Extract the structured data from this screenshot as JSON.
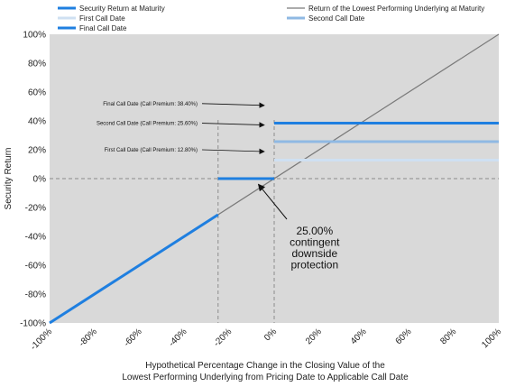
{
  "chart_data": {
    "type": "line",
    "xlabel_lines": [
      "Hypothetical Percentage Change in the Closing Value of the",
      "Lowest Performing Underlying from Pricing Date to Applicable Call Date"
    ],
    "ylabel": "Security Return",
    "xlim": [
      -100,
      100
    ],
    "ylim": [
      -100,
      100
    ],
    "x_ticks": [
      -100,
      -80,
      -60,
      -40,
      -20,
      0,
      20,
      40,
      60,
      80,
      100
    ],
    "y_ticks": [
      -100,
      -80,
      -60,
      -40,
      -20,
      0,
      20,
      40,
      60,
      80,
      100
    ],
    "x_tick_labels": [
      "-100%",
      "-80%",
      "-60%",
      "-40%",
      "-20%",
      "0%",
      "20%",
      "40%",
      "60%",
      "80%",
      "100%"
    ],
    "y_tick_labels": [
      "-100%",
      "-80%",
      "-60%",
      "-40%",
      "-20%",
      "0%",
      "20%",
      "40%",
      "60%",
      "80%",
      "100%"
    ],
    "legend": [
      {
        "label": "Security Return at Maturity",
        "color": "#1f7fe0",
        "thick": true
      },
      {
        "label": "Return of the Lowest Performing Underlying at Maturity",
        "color": "#7a7a7a",
        "thick": false
      },
      {
        "label": "First Call Date",
        "color": "#cfe0f2",
        "thick": true
      },
      {
        "label": "Second Call Date",
        "color": "#8fb9e3",
        "thick": true
      },
      {
        "label": "Final Call Date",
        "color": "#1f7fe0",
        "thick": true
      }
    ],
    "series": [
      {
        "name": "Return of the Lowest Performing Underlying at Maturity",
        "color": "#7a7a7a",
        "points": [
          [
            -100,
            -100
          ],
          [
            100,
            100
          ]
        ]
      },
      {
        "name": "Security Return at Maturity",
        "color": "#1f7fe0",
        "segments": [
          [
            [
              -100,
              -100
            ],
            [
              -25,
              -25
            ]
          ],
          [
            [
              -25,
              0
            ],
            [
              0,
              0
            ]
          ]
        ]
      },
      {
        "name": "First Call Date",
        "color": "#cfe0f2",
        "points": [
          [
            0,
            12.8
          ],
          [
            100,
            12.8
          ]
        ]
      },
      {
        "name": "Second Call Date",
        "color": "#8fb9e3",
        "points": [
          [
            0,
            25.6
          ],
          [
            100,
            25.6
          ]
        ]
      },
      {
        "name": "Final Call Date",
        "color": "#1f7fe0",
        "points": [
          [
            0,
            38.4
          ],
          [
            100,
            38.4
          ]
        ]
      }
    ],
    "reference_lines": {
      "horizontal_zero": 0,
      "vertical_at": [
        -25,
        0
      ]
    },
    "annotations": {
      "callouts": [
        {
          "text": "Final Call Date (Call Premium: 38.40%)",
          "y": 52
        },
        {
          "text": "Second Call Date (Call Premium: 25.60%)",
          "y": 38.4
        },
        {
          "text": "First Call Date (Call Premium: 12.80%)",
          "y": 20
        }
      ],
      "protection_lines": [
        "25.00%",
        "contingent",
        "downside",
        "protection"
      ]
    },
    "colors": {
      "plot_background": "#d9d9d9",
      "maturity": "#1f7fe0",
      "underlying": "#7a7a7a",
      "first_call": "#cfe0f2",
      "second_call": "#8fb9e3",
      "final_call": "#1f7fe0",
      "dashed": "#9a9a9a"
    }
  }
}
